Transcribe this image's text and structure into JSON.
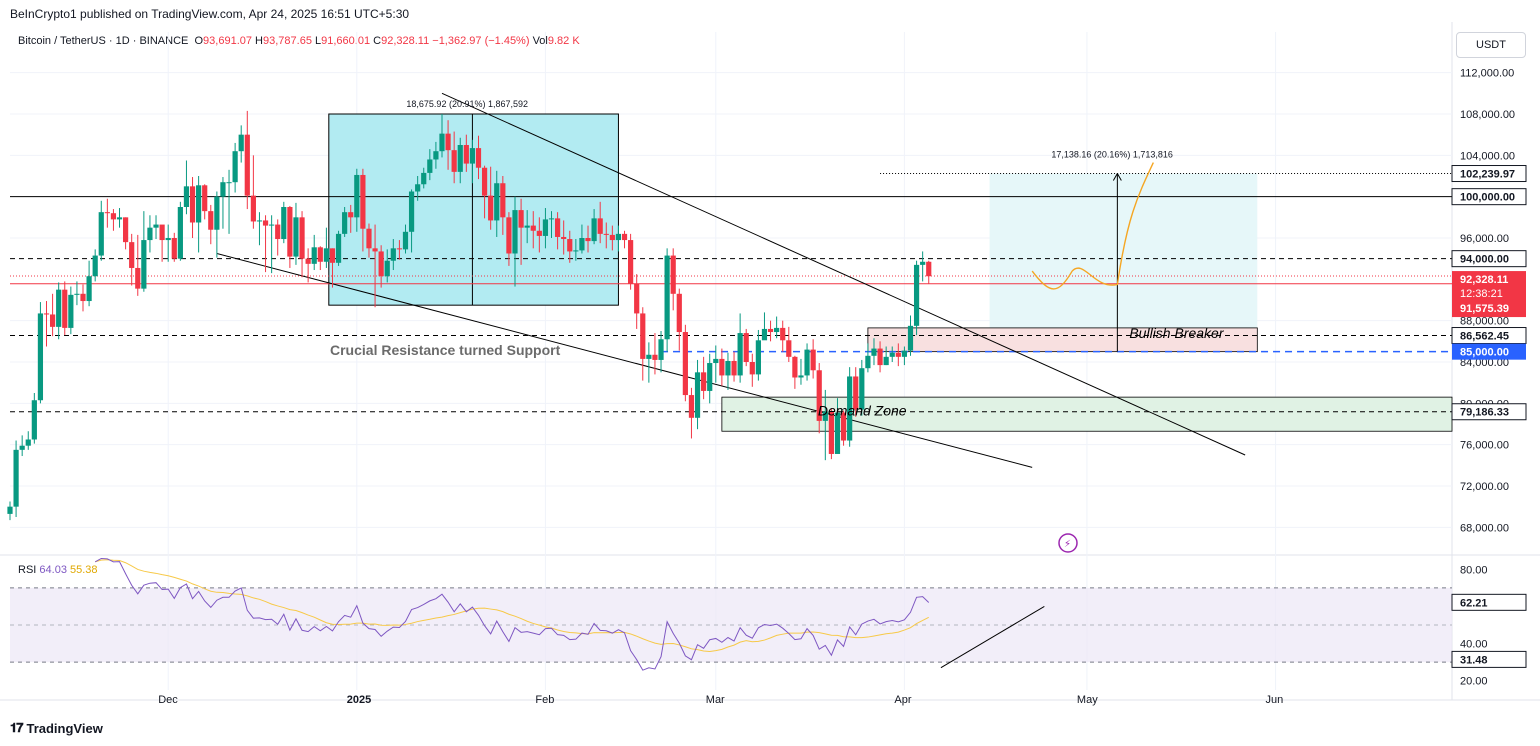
{
  "publisher": "BeInCrypto1 published on TradingView.com, Apr 24, 2025 16:51 UTC+5:30",
  "legend": {
    "symbol": "Bitcoin / TetherUS · 1D · BINANCE",
    "o_label": "O",
    "o": "93,691.07",
    "h_label": "H",
    "h": "93,787.65",
    "l_label": "L",
    "l": "91,660.01",
    "c_label": "C",
    "c": "92,328.11",
    "change": "−1,362.97 (−1.45%)",
    "vol_label": "Vol",
    "vol": "9.82 K"
  },
  "currency": "USDT",
  "branding": "TradingView",
  "colors": {
    "up": "#089981",
    "down": "#f23645",
    "rsi": "#7e57c2",
    "rsi_ma": "#f7c948",
    "blue": "#2962ff",
    "box": "#b2ebf2",
    "demand": "#e0f2e4",
    "breaker": "#f8e0e0",
    "projection": "#e6f7f9",
    "orange": "#f5a623"
  },
  "chart_data": {
    "type": "candlestick",
    "title": "",
    "xlabel": "",
    "ylabel": "",
    "ylim": [
      66000,
      114000
    ],
    "y_ticks": [
      "112,000.00",
      "108,000.00",
      "104,000.00",
      "96,000.00",
      "88,000.00",
      "84,000.00",
      "80,000.00",
      "76,000.00",
      "72,000.00",
      "68,000.00"
    ],
    "x_ticks": [
      "Dec",
      "2025",
      "Feb",
      "Mar",
      "Apr",
      "May",
      "Jun"
    ],
    "x_tick_dates": [
      "2024-12-01",
      "2025-01-01",
      "2025-02-01",
      "2025-03-01",
      "2025-04-01",
      "2025-05-01",
      "2025-06-01"
    ],
    "date_range": [
      "2024-11-05",
      "2025-06-30"
    ],
    "candles": {
      "start_date": "2024-11-05",
      "interval": "1D",
      "close": [
        70000,
        75500,
        75900,
        76500,
        80300,
        88700,
        88600,
        87400,
        91000,
        87300,
        90500,
        90600,
        89900,
        92300,
        94300,
        98500,
        98400,
        97800,
        98000,
        95600,
        93100,
        91100,
        95800,
        97000,
        97300,
        95800,
        96000,
        94000,
        99000,
        101000,
        97500,
        101100,
        98600,
        96800,
        100000,
        101400,
        101400,
        104400,
        106000,
        100100,
        97600,
        97700,
        97200,
        97300,
        95900,
        99000,
        94200,
        98000,
        94000,
        93500,
        95100,
        93700,
        95000,
        93600,
        96400,
        98500,
        98000,
        102100,
        96900,
        95000,
        94700,
        92300,
        93800,
        95000,
        94900,
        96600,
        100500,
        101200,
        102300,
        103600,
        104400,
        106100,
        104500,
        102400,
        105000,
        103200,
        104700,
        102800,
        100100,
        97700,
        101300,
        98000,
        94500,
        98700,
        97000,
        97200,
        96700,
        96200,
        97800,
        97900,
        96100,
        95900,
        94700,
        94800,
        96000,
        95700,
        97900,
        96400,
        96300,
        95800,
        96400,
        95800,
        91600,
        88700,
        84300,
        84700,
        84200,
        86200,
        94300,
        90600,
        86900,
        80800,
        78600,
        83000,
        81200,
        83900,
        84300,
        82700,
        84100,
        82700,
        86800,
        84000,
        82800,
        86100,
        87200,
        86900,
        87300,
        86100,
        84500,
        82500,
        82700,
        85200,
        83200,
        78300,
        79200,
        75100,
        79100,
        76400,
        82600,
        79400,
        83400,
        84600,
        85300,
        83700,
        84500,
        84900,
        84500,
        85100,
        87500,
        93400,
        93700,
        92300
      ],
      "open": [
        69300,
        70000,
        75500,
        75900,
        76500,
        80300,
        88700,
        88600,
        87400,
        91000,
        87300,
        90500,
        90600,
        89900,
        92300,
        94300,
        98500,
        98400,
        97800,
        98000,
        95600,
        93100,
        91100,
        95800,
        97000,
        97300,
        95800,
        96000,
        94000,
        99000,
        101000,
        97500,
        101100,
        98600,
        96800,
        100000,
        101400,
        101400,
        104400,
        106000,
        100100,
        97600,
        97700,
        97200,
        97300,
        95900,
        99000,
        94200,
        98000,
        94000,
        93500,
        95100,
        93700,
        95000,
        93600,
        96400,
        98500,
        98000,
        102100,
        96900,
        95000,
        94700,
        92300,
        93800,
        95000,
        94900,
        96600,
        100500,
        101200,
        102300,
        103600,
        104400,
        106100,
        104500,
        102400,
        105000,
        103200,
        104700,
        102800,
        100100,
        97700,
        101300,
        98000,
        94500,
        98700,
        97000,
        97200,
        96700,
        96200,
        97800,
        97900,
        96100,
        95900,
        94700,
        94800,
        96000,
        95700,
        97900,
        96400,
        96300,
        95800,
        96400,
        95800,
        91600,
        88700,
        84300,
        84700,
        84200,
        86200,
        94300,
        90600,
        86900,
        80800,
        78600,
        83000,
        81200,
        83900,
        84300,
        82700,
        84100,
        82700,
        86800,
        84000,
        82800,
        86100,
        87200,
        86900,
        87300,
        86100,
        84500,
        82500,
        82700,
        85200,
        83200,
        78300,
        79200,
        75100,
        79100,
        76400,
        82600,
        79400,
        83400,
        84600,
        85300,
        83700,
        84500,
        84900,
        84500,
        85100,
        87500,
        93400,
        93700
      ],
      "high": [
        70500,
        76400,
        76900,
        77300,
        81000,
        89800,
        89900,
        90600,
        91700,
        91800,
        91300,
        91800,
        91500,
        93800,
        94900,
        99600,
        99800,
        98800,
        98900,
        98000,
        96400,
        96300,
        98600,
        98200,
        98200,
        97100,
        97300,
        96500,
        99500,
        103500,
        101900,
        102000,
        101200,
        99200,
        100500,
        101900,
        102600,
        105200,
        106900,
        108300,
        104000,
        98500,
        98200,
        98200,
        97800,
        99500,
        99100,
        99400,
        98600,
        95000,
        96300,
        95200,
        97000,
        95000,
        96700,
        99000,
        99200,
        102700,
        102700,
        97400,
        97300,
        95300,
        94900,
        95900,
        95800,
        97300,
        100700,
        102000,
        102800,
        104600,
        105300,
        108000,
        107400,
        106300,
        105700,
        106000,
        105500,
        105900,
        103000,
        102900,
        102500,
        102000,
        98500,
        100000,
        99800,
        98700,
        98600,
        98000,
        98900,
        98600,
        98500,
        97700,
        96700,
        95900,
        97300,
        97200,
        98800,
        99500,
        97500,
        97200,
        97200,
        96700,
        96400,
        92500,
        89300,
        85900,
        86800,
        87000,
        95000,
        95000,
        91100,
        87600,
        81500,
        84200,
        84500,
        84800,
        85600,
        85300,
        84900,
        85000,
        88700,
        87200,
        84800,
        87100,
        88800,
        88000,
        88400,
        88000,
        87400,
        84600,
        84300,
        85800,
        86200,
        83900,
        81300,
        79500,
        80500,
        79300,
        83500,
        83500,
        84200,
        85800,
        86300,
        86000,
        85500,
        85500,
        85800,
        85500,
        88500,
        93800,
        94700,
        93800
      ],
      "low": [
        68700,
        69000,
        74900,
        75500,
        76100,
        80000,
        85500,
        86500,
        86200,
        86600,
        86700,
        89500,
        88900,
        89400,
        91800,
        93800,
        97000,
        96700,
        97000,
        94900,
        91400,
        90400,
        90800,
        94600,
        95900,
        93700,
        93700,
        93700,
        93800,
        98300,
        96000,
        94600,
        97800,
        95400,
        94100,
        96900,
        96400,
        100400,
        103300,
        98800,
        96900,
        95300,
        92700,
        92600,
        94300,
        95500,
        93100,
        93400,
        92200,
        91700,
        92900,
        92900,
        93100,
        91200,
        93300,
        96100,
        96500,
        96600,
        94700,
        94100,
        89300,
        91200,
        91700,
        92900,
        93900,
        94500,
        94600,
        99600,
        100800,
        101600,
        102700,
        103800,
        102600,
        101300,
        101300,
        102400,
        101300,
        101700,
        97900,
        96800,
        96100,
        96300,
        93300,
        91300,
        93400,
        95500,
        95000,
        94600,
        95000,
        96000,
        94900,
        94400,
        93600,
        93800,
        94500,
        94600,
        95400,
        95500,
        95000,
        94800,
        94700,
        95000,
        91000,
        87200,
        82200,
        82000,
        82800,
        83000,
        85000,
        89000,
        85100,
        80200,
        76600,
        77500,
        80400,
        80000,
        82000,
        81700,
        81300,
        82100,
        82000,
        83600,
        81600,
        82200,
        86200,
        86000,
        86300,
        85000,
        84000,
        81400,
        81800,
        82200,
        82400,
        77100,
        74500,
        74600,
        75200,
        75900,
        75800,
        78700,
        78800,
        83000,
        83700,
        83000,
        83700,
        84000,
        83600,
        83700,
        84600,
        86600,
        91800,
        91600
      ]
    },
    "horizontal_levels": [
      {
        "price": 100000,
        "label": "100,000.00",
        "style": "solid"
      },
      {
        "price": 94000,
        "label": "94,000.00",
        "style": "dashed"
      },
      {
        "price": 86562.45,
        "label": "86,562.45",
        "style": "dashed"
      },
      {
        "price": 85000,
        "label": "85,000.00",
        "style": "dashed-blue"
      },
      {
        "price": 79186.33,
        "label": "79,186.33",
        "style": "dashed"
      },
      {
        "price": 102239.97,
        "label": "102,239.97",
        "style": "dotted"
      }
    ],
    "price_labels": {
      "last": "92,328.11",
      "countdown": "12:38:21",
      "prev": "91,575.39"
    },
    "annotations": {
      "measure1": "18,675.92 (20.91%) 1,867,592",
      "measure2": "17,138.16 (20.16%) 1,713,816",
      "crucial": "Crucial Resistance turned Support",
      "bullish_breaker": "Bullish Breaker",
      "demand_zone": "Demand Zone"
    },
    "rsi": {
      "label": "RSI",
      "value": "64.03",
      "ma": "55.38",
      "y_ticks": [
        "80.00",
        "40.00",
        "20.00"
      ],
      "upper_label": "62.21",
      "lower_label": "31.48",
      "ylim": [
        15,
        85
      ]
    }
  }
}
